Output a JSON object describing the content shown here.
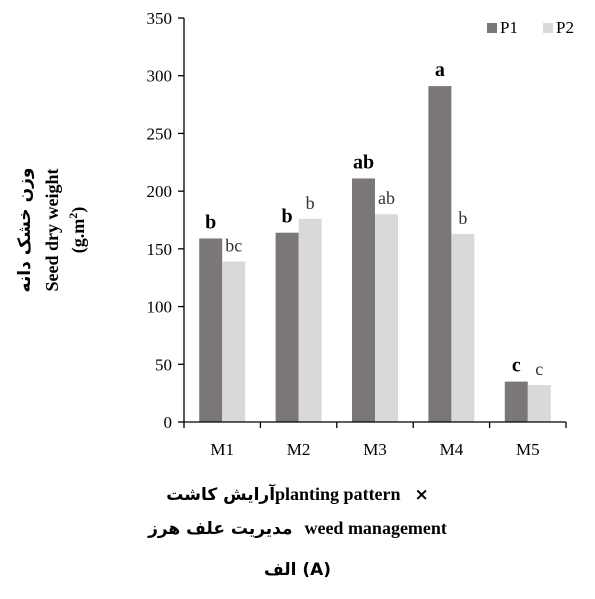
{
  "chart_data": {
    "type": "bar",
    "categories": [
      "M1",
      "M2",
      "M3",
      "M4",
      "M5"
    ],
    "series": [
      {
        "name": "P1",
        "color": "#7b7776",
        "values": [
          159,
          164,
          211,
          291,
          35
        ],
        "letters": [
          "b",
          "b",
          "ab",
          "a",
          "c"
        ]
      },
      {
        "name": "P2",
        "color": "#d9d9d9",
        "values": [
          139,
          176,
          180,
          163,
          32
        ],
        "letters": [
          "bc",
          "b",
          "ab",
          "b",
          "c"
        ]
      }
    ],
    "ylim": [
      0,
      350
    ],
    "yticks": [
      0,
      50,
      100,
      150,
      200,
      250,
      300,
      350
    ],
    "ylabel_fa": "وزن خشک دانه",
    "ylabel_en": "Seed dry weight",
    "ylabel_unit_pre": "(g.m",
    "ylabel_unit_sup": "2",
    "ylabel_unit_post": ")",
    "xlabel_line1_fa": "آرایش کاشت",
    "xlabel_line1_en": "planting pattern",
    "xlabel_line1_sep": "×",
    "xlabel_line2_fa": "مدیریت علف هرز",
    "xlabel_line2_en": "weed management",
    "panel_label": "الف (A)",
    "legend_position": "top-right",
    "grid": false
  }
}
